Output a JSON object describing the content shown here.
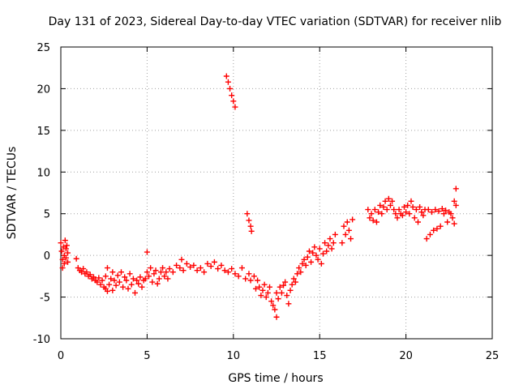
{
  "chart_data": {
    "type": "scatter",
    "title": "Day 131 of 2023, Sidereal Day-to-day VTEC variation (SDTVAR) for receiver nlib",
    "xlabel": "GPS time / hours",
    "ylabel": "SDTVAR / TECUs",
    "xlim": [
      0,
      25
    ],
    "ylim": [
      -10,
      25
    ],
    "xticks": [
      0,
      5,
      10,
      15,
      20,
      25
    ],
    "yticks": [
      -10,
      -5,
      0,
      5,
      10,
      15,
      20,
      25
    ],
    "grid": true,
    "marker": "+",
    "series": [
      {
        "name": "SDTVAR",
        "color": "#ff0000",
        "points": [
          [
            0.0,
            1.5
          ],
          [
            0.05,
            0.5
          ],
          [
            0.1,
            -0.5
          ],
          [
            0.1,
            -1.5
          ],
          [
            0.15,
            1.0
          ],
          [
            0.2,
            0.0
          ],
          [
            0.2,
            -1.0
          ],
          [
            0.25,
            1.8
          ],
          [
            0.3,
            0.8
          ],
          [
            0.3,
            -0.3
          ],
          [
            0.35,
            1.2
          ],
          [
            0.4,
            -0.8
          ],
          [
            0.4,
            0.3
          ],
          [
            0.9,
            -0.4
          ],
          [
            1.0,
            -1.5
          ],
          [
            1.1,
            -1.8
          ],
          [
            1.2,
            -2.0
          ],
          [
            1.3,
            -1.6
          ],
          [
            1.4,
            -2.2
          ],
          [
            1.5,
            -2.0
          ],
          [
            1.6,
            -2.5
          ],
          [
            1.7,
            -2.3
          ],
          [
            1.8,
            -2.8
          ],
          [
            1.9,
            -2.6
          ],
          [
            2.0,
            -3.0
          ],
          [
            2.1,
            -3.2
          ],
          [
            2.2,
            -2.7
          ],
          [
            2.3,
            -3.5
          ],
          [
            2.4,
            -3.0
          ],
          [
            2.5,
            -3.8
          ],
          [
            2.6,
            -4.0
          ],
          [
            2.6,
            -2.5
          ],
          [
            2.7,
            -4.3
          ],
          [
            2.7,
            -1.5
          ],
          [
            2.8,
            -3.5
          ],
          [
            2.9,
            -2.8
          ],
          [
            3.0,
            -4.2
          ],
          [
            3.0,
            -2.0
          ],
          [
            3.1,
            -3.0
          ],
          [
            3.2,
            -3.6
          ],
          [
            3.3,
            -2.4
          ],
          [
            3.4,
            -3.2
          ],
          [
            3.5,
            -2.0
          ],
          [
            3.6,
            -3.8
          ],
          [
            3.7,
            -2.6
          ],
          [
            3.8,
            -3.0
          ],
          [
            3.9,
            -4.0
          ],
          [
            4.0,
            -2.2
          ],
          [
            4.1,
            -3.5
          ],
          [
            4.2,
            -2.8
          ],
          [
            4.3,
            -4.5
          ],
          [
            4.4,
            -3.0
          ],
          [
            4.5,
            -3.4
          ],
          [
            4.6,
            -2.6
          ],
          [
            4.7,
            -3.8
          ],
          [
            4.8,
            -3.0
          ],
          [
            4.9,
            -2.8
          ],
          [
            5.0,
            -2.0
          ],
          [
            5.0,
            0.4
          ],
          [
            5.1,
            -2.5
          ],
          [
            5.2,
            -1.5
          ],
          [
            5.3,
            -3.2
          ],
          [
            5.4,
            -2.2
          ],
          [
            5.5,
            -1.8
          ],
          [
            5.6,
            -3.4
          ],
          [
            5.7,
            -2.8
          ],
          [
            5.8,
            -2.0
          ],
          [
            5.9,
            -1.5
          ],
          [
            6.0,
            -2.5
          ],
          [
            6.1,
            -2.0
          ],
          [
            6.2,
            -2.8
          ],
          [
            6.3,
            -1.6
          ],
          [
            6.5,
            -2.0
          ],
          [
            6.7,
            -1.2
          ],
          [
            6.9,
            -1.5
          ],
          [
            7.0,
            -0.5
          ],
          [
            7.1,
            -1.8
          ],
          [
            7.3,
            -1.0
          ],
          [
            7.5,
            -1.4
          ],
          [
            7.7,
            -1.2
          ],
          [
            7.9,
            -1.8
          ],
          [
            8.1,
            -1.5
          ],
          [
            8.3,
            -2.0
          ],
          [
            8.5,
            -1.0
          ],
          [
            8.7,
            -1.3
          ],
          [
            8.9,
            -0.8
          ],
          [
            9.1,
            -1.6
          ],
          [
            9.3,
            -1.2
          ],
          [
            9.5,
            -1.8
          ],
          [
            9.7,
            -2.0
          ],
          [
            9.9,
            -1.6
          ],
          [
            10.1,
            -2.2
          ],
          [
            10.3,
            -2.5
          ],
          [
            10.5,
            -1.5
          ],
          [
            10.7,
            -2.8
          ],
          [
            10.9,
            -2.2
          ],
          [
            11.0,
            -3.0
          ],
          [
            11.2,
            -2.5
          ],
          [
            11.3,
            -4.0
          ],
          [
            11.4,
            -3.0
          ],
          [
            11.5,
            -3.8
          ],
          [
            11.6,
            -4.8
          ],
          [
            11.7,
            -4.2
          ],
          [
            11.8,
            -3.5
          ],
          [
            11.9,
            -5.0
          ],
          [
            12.0,
            -4.5
          ],
          [
            12.1,
            -3.8
          ],
          [
            12.2,
            -5.5
          ],
          [
            12.3,
            -6.0
          ],
          [
            12.4,
            -6.5
          ],
          [
            12.5,
            -7.4
          ],
          [
            12.5,
            -4.5
          ],
          [
            12.6,
            -5.2
          ],
          [
            12.7,
            -3.8
          ],
          [
            12.8,
            -4.5
          ],
          [
            12.9,
            -3.6
          ],
          [
            13.0,
            -3.2
          ],
          [
            13.1,
            -4.8
          ],
          [
            13.2,
            -5.8
          ],
          [
            13.3,
            -4.2
          ],
          [
            13.4,
            -3.5
          ],
          [
            13.5,
            -2.8
          ],
          [
            13.6,
            -3.2
          ],
          [
            13.7,
            -2.2
          ],
          [
            13.8,
            -1.5
          ],
          [
            13.9,
            -2.0
          ],
          [
            14.0,
            -1.0
          ],
          [
            14.1,
            -0.5
          ],
          [
            14.2,
            -1.2
          ],
          [
            14.3,
            -0.2
          ],
          [
            14.4,
            0.5
          ],
          [
            14.5,
            -0.8
          ],
          [
            14.6,
            0.3
          ],
          [
            14.7,
            1.0
          ],
          [
            14.8,
            0.0
          ],
          [
            14.9,
            -0.5
          ],
          [
            15.0,
            0.8
          ],
          [
            15.1,
            -1.0
          ],
          [
            15.2,
            0.2
          ],
          [
            15.3,
            1.5
          ],
          [
            15.4,
            0.5
          ],
          [
            15.5,
            1.2
          ],
          [
            15.6,
            2.0
          ],
          [
            15.7,
            0.8
          ],
          [
            15.8,
            1.5
          ],
          [
            15.9,
            2.5
          ],
          [
            9.6,
            21.5
          ],
          [
            9.7,
            20.8
          ],
          [
            9.8,
            20.0
          ],
          [
            9.9,
            19.2
          ],
          [
            10.0,
            18.5
          ],
          [
            10.1,
            17.8
          ],
          [
            10.8,
            5.0
          ],
          [
            10.9,
            4.2
          ],
          [
            11.0,
            3.5
          ],
          [
            11.05,
            2.9
          ],
          [
            16.3,
            1.5
          ],
          [
            16.4,
            3.5
          ],
          [
            16.5,
            2.5
          ],
          [
            16.6,
            4.0
          ],
          [
            16.7,
            3.0
          ],
          [
            16.8,
            2.0
          ],
          [
            16.9,
            4.3
          ],
          [
            17.8,
            5.5
          ],
          [
            17.9,
            4.5
          ],
          [
            18.0,
            5.0
          ],
          [
            18.1,
            4.2
          ],
          [
            18.2,
            5.5
          ],
          [
            18.3,
            4.0
          ],
          [
            18.4,
            5.2
          ],
          [
            18.5,
            6.0
          ],
          [
            18.6,
            5.0
          ],
          [
            18.7,
            5.8
          ],
          [
            18.8,
            6.5
          ],
          [
            18.9,
            5.5
          ],
          [
            19.0,
            6.8
          ],
          [
            19.1,
            6.0
          ],
          [
            19.2,
            6.5
          ],
          [
            19.3,
            5.5
          ],
          [
            19.4,
            5.0
          ],
          [
            19.5,
            4.5
          ],
          [
            19.6,
            5.5
          ],
          [
            19.7,
            5.0
          ],
          [
            19.8,
            4.8
          ],
          [
            19.9,
            5.8
          ],
          [
            20.0,
            5.2
          ],
          [
            20.1,
            6.0
          ],
          [
            20.2,
            5.0
          ],
          [
            20.3,
            6.5
          ],
          [
            20.4,
            5.8
          ],
          [
            20.5,
            4.5
          ],
          [
            20.6,
            5.5
          ],
          [
            20.7,
            4.0
          ],
          [
            20.8,
            5.8
          ],
          [
            20.9,
            5.2
          ],
          [
            21.0,
            4.8
          ],
          [
            21.1,
            5.5
          ],
          [
            21.2,
            2.0
          ],
          [
            21.3,
            5.5
          ],
          [
            21.4,
            2.5
          ],
          [
            21.5,
            5.2
          ],
          [
            21.6,
            3.0
          ],
          [
            21.7,
            5.5
          ],
          [
            21.8,
            3.2
          ],
          [
            21.9,
            5.3
          ],
          [
            22.0,
            3.5
          ],
          [
            22.1,
            5.6
          ],
          [
            22.2,
            5.0
          ],
          [
            22.3,
            5.4
          ],
          [
            22.4,
            4.0
          ],
          [
            22.5,
            5.2
          ],
          [
            22.6,
            5.0
          ],
          [
            22.7,
            4.5
          ],
          [
            22.8,
            6.5
          ],
          [
            22.8,
            3.8
          ],
          [
            22.9,
            8.0
          ],
          [
            22.9,
            6.0
          ]
        ]
      }
    ]
  }
}
